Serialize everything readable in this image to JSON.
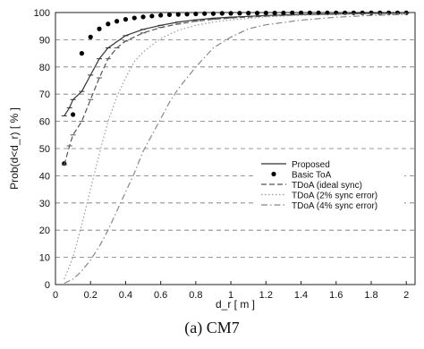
{
  "caption": "(a)  CM7",
  "chart_data": {
    "type": "line",
    "xlabel": "d_r [ m ]",
    "ylabel": "Prob(d<d_r) [ % ]",
    "xlim": [
      0,
      2.05
    ],
    "ylim": [
      0,
      100
    ],
    "xticks": [
      0,
      0.2,
      0.4,
      0.6,
      0.8,
      1,
      1.2,
      1.4,
      1.6,
      1.8,
      2
    ],
    "yticks": [
      0,
      10,
      20,
      30,
      40,
      50,
      60,
      70,
      80,
      90,
      100
    ],
    "grid": "horizontal dashed",
    "legend_position": "right-middle",
    "series": [
      {
        "name": "Proposed",
        "style": "solid",
        "color": "#333333",
        "x": [
          0.05,
          0.08,
          0.1,
          0.15,
          0.2,
          0.25,
          0.3,
          0.4,
          0.5,
          0.6,
          0.7,
          0.8,
          0.9,
          1.0,
          1.2,
          1.4,
          1.6,
          1.8,
          2.0
        ],
        "y": [
          62,
          65,
          68,
          71,
          77,
          83,
          87,
          91.5,
          93.8,
          95.3,
          96.5,
          97.3,
          97.9,
          98.3,
          98.9,
          99.3,
          99.5,
          99.7,
          99.8
        ]
      },
      {
        "name": "Basic ToA",
        "style": "markers",
        "color": "#000000",
        "x": [
          0.05,
          0.1,
          0.15,
          0.2,
          0.25,
          0.3,
          0.35,
          0.4,
          0.45,
          0.5,
          0.55,
          0.6,
          0.65,
          0.7,
          0.75,
          0.8,
          0.85,
          0.9,
          0.95,
          1.0,
          1.05,
          1.1,
          1.15,
          1.2,
          1.25,
          1.3,
          1.35,
          1.4,
          1.45,
          1.5,
          1.55,
          1.6,
          1.65,
          1.7,
          1.75,
          1.8,
          1.85,
          1.9,
          1.95,
          2.0
        ],
        "y": [
          44.5,
          62.5,
          85,
          91,
          94,
          95.8,
          96.8,
          97.5,
          98,
          98.4,
          98.7,
          99,
          99.2,
          99.3,
          99.4,
          99.5,
          99.6,
          99.6,
          99.7,
          99.7,
          99.75,
          99.8,
          99.8,
          99.85,
          99.85,
          99.85,
          99.9,
          99.9,
          99.9,
          99.9,
          99.9,
          99.9,
          99.9,
          99.9,
          99.9,
          99.9,
          99.9,
          99.9,
          99.9,
          99.9
        ]
      },
      {
        "name": "TDoA (ideal sync)",
        "style": "dash",
        "color": "#555555",
        "x": [
          0.05,
          0.08,
          0.1,
          0.15,
          0.2,
          0.25,
          0.3,
          0.35,
          0.4,
          0.5,
          0.6,
          0.7,
          0.8,
          0.9,
          1.0,
          1.2,
          1.4,
          1.6,
          1.8,
          2.0
        ],
        "y": [
          44,
          51,
          55,
          60,
          68,
          76,
          83,
          87,
          89.5,
          92.5,
          94.5,
          95.8,
          96.8,
          97.5,
          98,
          98.7,
          99.2,
          99.4,
          99.6,
          99.7
        ]
      },
      {
        "name": "TDoA (2% sync error)",
        "style": "dot",
        "color": "#9a9a9a",
        "x": [
          0.05,
          0.1,
          0.15,
          0.2,
          0.25,
          0.3,
          0.35,
          0.4,
          0.45,
          0.5,
          0.6,
          0.7,
          0.8,
          0.9,
          1.0,
          1.2,
          1.4,
          1.6,
          1.8,
          2.0
        ],
        "y": [
          2,
          10,
          22,
          35,
          48,
          60,
          69,
          76,
          82,
          85.5,
          90.5,
          93.5,
          95.3,
          96.5,
          97.3,
          98.4,
          99,
          99.3,
          99.5,
          99.6
        ]
      },
      {
        "name": "TDoA (4% sync error)",
        "style": "dash-dot",
        "color": "#888888",
        "x": [
          0.05,
          0.1,
          0.15,
          0.2,
          0.25,
          0.3,
          0.35,
          0.4,
          0.45,
          0.5,
          0.55,
          0.6,
          0.65,
          0.7,
          0.8,
          0.9,
          1.0,
          1.1,
          1.2,
          1.4,
          1.6,
          1.8,
          2.0
        ],
        "y": [
          0.5,
          2,
          5,
          9,
          14,
          20,
          27,
          34,
          41,
          49,
          55,
          61,
          67,
          72,
          80,
          87,
          91,
          94,
          95.5,
          97.2,
          98.3,
          98.9,
          99.3
        ]
      }
    ]
  }
}
